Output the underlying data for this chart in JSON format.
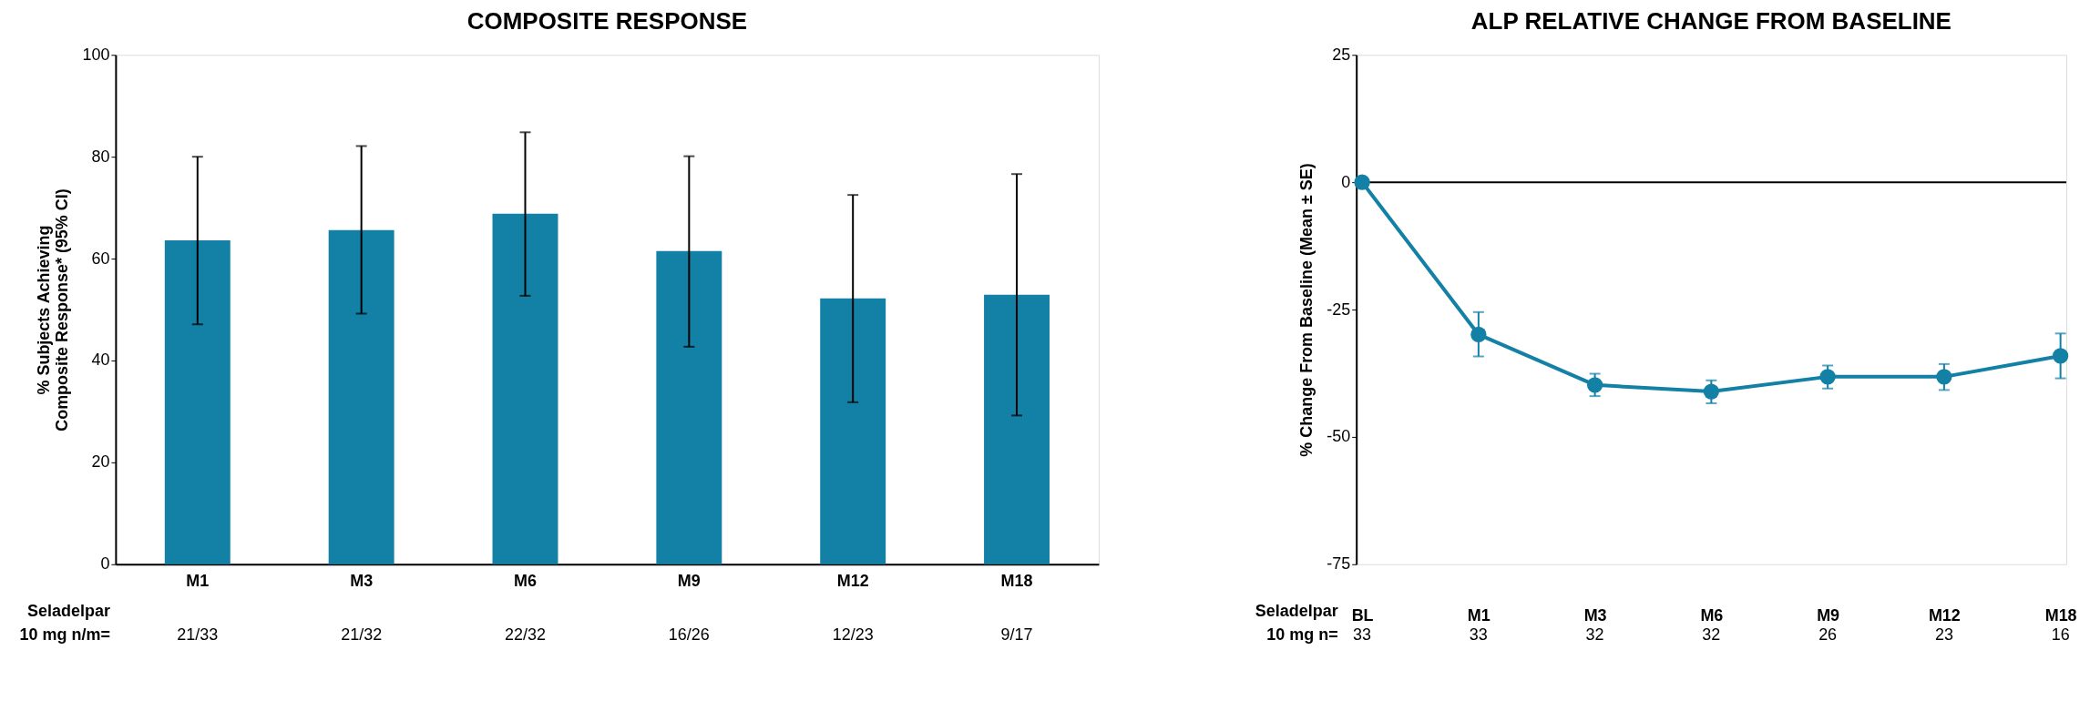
{
  "chart_data": [
    {
      "type": "bar",
      "title": "COMPOSITE RESPONSE",
      "ylabel": "% Subjects Achieving\nComposite Response* (95% CI)",
      "categories": [
        "M1",
        "M3",
        "M6",
        "M9",
        "M12",
        "M18"
      ],
      "values": [
        63.6,
        65.6,
        68.8,
        61.5,
        52.2,
        52.9
      ],
      "errors": [
        [
          47.1,
          80.0
        ],
        [
          49.2,
          82.1
        ],
        [
          52.7,
          84.8
        ],
        [
          42.7,
          80.1
        ],
        [
          31.8,
          72.5
        ],
        [
          29.2,
          76.6
        ]
      ],
      "color": "#1380a5",
      "ylim": [
        0,
        100
      ],
      "yticks": [
        0,
        20,
        40,
        60,
        80,
        100
      ],
      "grid": false,
      "annotations": [
        "Seladelpar",
        "10 mg n/m=",
        "21/33",
        "21/32",
        "22/32",
        "16/26",
        "12/23",
        "9/17"
      ]
    },
    {
      "type": "line",
      "title": "ALP RELATIVE CHANGE FROM BASELINE",
      "ylabel": "% Change From Baseline (Mean ± SE)",
      "categories": [
        "BL",
        "M1",
        null,
        "M3",
        null,
        null,
        "M6",
        null,
        null,
        "M9",
        null,
        null,
        "M12",
        null,
        null,
        null,
        null,
        null,
        "M18"
      ],
      "values": [
        0,
        -29.9,
        null,
        -39.8,
        null,
        null,
        -41.1,
        null,
        null,
        -38.2,
        null,
        null,
        -38.2,
        null,
        null,
        null,
        null,
        null,
        -34.1
      ],
      "errors": [
        null,
        [
          -34.2,
          -25.5
        ],
        null,
        [
          -42.0,
          -37.6
        ],
        null,
        null,
        [
          -43.4,
          -38.9
        ],
        null,
        null,
        [
          -40.5,
          -36.0
        ],
        null,
        null,
        [
          -40.8,
          -35.7
        ],
        null,
        null,
        null,
        null,
        null,
        [
          -38.5,
          -29.7
        ]
      ],
      "color": "#1380a5",
      "marker": "circle",
      "line_style": "solid",
      "ylim": [
        -75,
        25
      ],
      "yticks": [
        -75,
        -50,
        -25,
        0,
        25
      ],
      "grid": false,
      "ref_lines": [
        {
          "axis": "y",
          "value": 0,
          "color": "#000000"
        }
      ],
      "annotations": [
        "Seladelpar",
        "10 mg n=",
        "33",
        "33",
        "32",
        "32",
        "26",
        "23",
        "16"
      ]
    }
  ]
}
